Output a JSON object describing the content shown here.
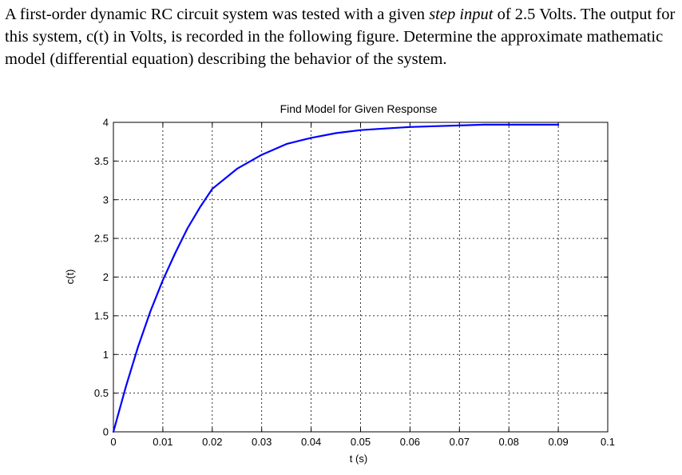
{
  "question": {
    "part1": "A first-order dynamic RC circuit system was tested with a given ",
    "emphasis": "step input",
    "part2": " of 2.5 Volts. The output for this system, c(t) in Volts, is recorded in the following figure. Determine the approximate mathematic model (differential equation) describing the behavior of the system."
  },
  "chart_data": {
    "type": "line",
    "title": "Find Model for Given Response",
    "xlabel": "t (s)",
    "ylabel": "c(t)",
    "xlim": [
      0,
      0.1
    ],
    "ylim": [
      0,
      4
    ],
    "xticks": [
      "0",
      "0.01",
      "0.02",
      "0.03",
      "0.04",
      "0.05",
      "0.06",
      "0.07",
      "0.08",
      "0.09",
      "0.1"
    ],
    "yticks": [
      "0",
      "0.5",
      "1",
      "1.5",
      "2",
      "2.5",
      "3",
      "3.5",
      "4"
    ],
    "grid": true,
    "line_color": "#0000ff",
    "series": [
      {
        "x": [
          0,
          0.0025,
          0.005,
          0.0075,
          0.01,
          0.0125,
          0.015,
          0.0175,
          0.02,
          0.025,
          0.03,
          0.035,
          0.04,
          0.045,
          0.05,
          0.055,
          0.06,
          0.065,
          0.07,
          0.075,
          0.08,
          0.085,
          0.09
        ],
        "values": [
          0,
          0.58,
          1.1,
          1.56,
          1.96,
          2.31,
          2.63,
          2.9,
          3.14,
          3.4,
          3.58,
          3.72,
          3.8,
          3.86,
          3.9,
          3.92,
          3.94,
          3.95,
          3.96,
          3.97,
          3.97,
          3.97,
          3.97
        ]
      }
    ]
  }
}
